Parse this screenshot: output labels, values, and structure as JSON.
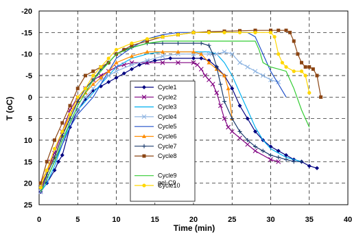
{
  "chart_data": {
    "type": "line",
    "title": "",
    "xlabel": "Time (min)",
    "ylabel": "T (oC)",
    "xlim": [
      0,
      40
    ],
    "ylim": [
      25,
      -20
    ],
    "y_axis_reversed": true,
    "grid": true,
    "grid_style": "dashed",
    "legend_position": "center",
    "x_ticks": [
      "0",
      "5",
      "10",
      "15",
      "20",
      "25",
      "30",
      "35",
      "40"
    ],
    "y_ticks": [
      "-20",
      "-15",
      "-10",
      "-5",
      "0",
      "5",
      "10",
      "15",
      "20",
      "25"
    ],
    "legend_extra_label": "gel-C9",
    "series": [
      {
        "name": "Cycle1",
        "color": "#000080",
        "marker": "diamond",
        "x": [
          0.2,
          1,
          2,
          2.5,
          3,
          4,
          5,
          6,
          7,
          8,
          9,
          10,
          11,
          12,
          13,
          14,
          15,
          17,
          20,
          21,
          22,
          23,
          24,
          25,
          26,
          27,
          28,
          29,
          30,
          31,
          32,
          33,
          34,
          35,
          36
        ],
        "y": [
          22,
          20,
          17,
          15,
          13.5,
          7,
          3,
          0.5,
          -1.5,
          -2.5,
          -3.5,
          -4.5,
          -5.5,
          -6.5,
          -7.5,
          -8,
          -8.5,
          -9,
          -9,
          -9,
          -8.5,
          -7,
          -5,
          -2,
          2,
          5,
          8,
          10,
          11.5,
          12.5,
          13.5,
          14.5,
          15,
          16,
          16.5
        ]
      },
      {
        "name": "Cycle2",
        "color": "#800080",
        "marker": "x",
        "x": [
          0.2,
          0.8,
          1.5,
          2,
          3,
          4,
          5,
          6,
          7,
          8,
          9,
          10,
          11,
          12,
          14,
          16,
          18,
          20,
          20.5,
          21,
          21.5,
          22,
          22.5,
          23,
          23.5,
          24,
          24.5,
          25,
          26,
          27,
          28,
          30,
          31
        ],
        "y": [
          22,
          19,
          15,
          13,
          8,
          3,
          0,
          -2,
          -4,
          -5,
          -6,
          -7,
          -7.5,
          -8,
          -8,
          -8,
          -8,
          -8,
          -7.5,
          -6.5,
          -5,
          -4,
          -3,
          -1,
          2,
          5,
          7,
          8,
          9.5,
          11,
          12.5,
          14.5,
          15
        ]
      },
      {
        "name": "Cycle3",
        "color": "#00b0f0",
        "marker": "none",
        "x": [
          0.2,
          1,
          2,
          3,
          4,
          5,
          6,
          7,
          8,
          9,
          10,
          12,
          14,
          16,
          18,
          20,
          22,
          23,
          24,
          25,
          26,
          27,
          28,
          29,
          30,
          31,
          32,
          33,
          34
        ],
        "y": [
          22,
          20,
          16,
          11,
          6,
          3,
          1,
          -1,
          -3,
          -5,
          -7,
          -9,
          -10,
          -10.5,
          -10.5,
          -10.5,
          -10.5,
          -10,
          -8,
          -5,
          -1,
          3,
          7,
          10,
          12,
          13,
          14,
          14.5,
          15
        ]
      },
      {
        "name": "Cycle4",
        "color": "#8db4e2",
        "marker": "x",
        "x": [
          0.2,
          1,
          2,
          3,
          4,
          5,
          6,
          7,
          8,
          9,
          10,
          12,
          14,
          16,
          18,
          20,
          21,
          22,
          23,
          24,
          25,
          26,
          27,
          28,
          29,
          30,
          31
        ],
        "y": [
          22,
          19,
          15,
          10,
          6,
          3,
          0,
          -2,
          -4,
          -5,
          -6,
          -7.5,
          -8.5,
          -9.5,
          -10,
          -10,
          -10,
          -10,
          -10,
          -10.5,
          -10,
          -8,
          -7,
          -6,
          -5,
          -4,
          -3.5
        ]
      },
      {
        "name": "Cycle5",
        "color": "#1f4fc8",
        "marker": "none",
        "x": [
          0.2,
          1,
          2,
          3,
          4,
          5,
          6,
          7,
          8,
          9,
          10,
          12,
          14,
          16,
          18,
          20,
          22,
          24,
          26,
          27,
          28,
          29,
          30,
          31,
          32
        ],
        "y": [
          22,
          19,
          15,
          11,
          7,
          4,
          2,
          0,
          -3,
          -6,
          -9,
          -11.5,
          -13.5,
          -14.5,
          -15,
          -15,
          -15,
          -15,
          -15,
          -15,
          -14,
          -10,
          -6,
          -3,
          0
        ]
      },
      {
        "name": "Cycle6",
        "color": "#ff8c00",
        "marker": "triangle",
        "x": [
          0.2,
          1,
          2,
          3,
          4,
          5,
          6,
          7,
          8,
          9,
          10,
          12,
          14,
          16,
          18,
          20,
          21,
          22,
          23,
          24,
          24.5,
          25
        ],
        "y": [
          20,
          17,
          14,
          9,
          4,
          1,
          -1,
          -3,
          -4.5,
          -6,
          -8,
          -9.5,
          -10.5,
          -10.5,
          -10.5,
          -10.5,
          -10,
          -8,
          -6.5,
          -5,
          -2,
          5
        ]
      },
      {
        "name": "Cycle7",
        "color": "#1a3a6b",
        "marker": "plus",
        "x": [
          0.2,
          1,
          2,
          3,
          4,
          5,
          6,
          7,
          8,
          9,
          10,
          11,
          12,
          14,
          16,
          18,
          20,
          21,
          22,
          22.5,
          23,
          23.5,
          24,
          25,
          26,
          27,
          28,
          29,
          30,
          31,
          32,
          33,
          34
        ],
        "y": [
          21,
          18,
          14,
          9,
          5,
          1,
          -2,
          -4,
          -6.5,
          -8,
          -10,
          -11,
          -11.5,
          -12.5,
          -12.5,
          -12.5,
          -12.5,
          -12.5,
          -12,
          -10,
          -7,
          -3,
          1,
          5,
          8,
          10,
          11.5,
          12.5,
          13.5,
          14,
          14.5,
          15,
          15
        ]
      },
      {
        "name": "Cycle8",
        "color": "#8b4513",
        "marker": "square",
        "x": [
          0.2,
          1,
          2,
          3,
          4,
          5,
          6,
          7,
          8,
          9,
          10,
          11,
          12,
          14,
          16,
          18,
          20,
          22,
          24,
          26,
          28,
          30,
          31,
          32,
          32.5,
          33,
          33.5,
          34,
          34.5,
          35,
          35.5,
          36,
          36.5
        ],
        "y": [
          20,
          15,
          10,
          6,
          2,
          -2,
          -5,
          -6,
          -7,
          -8,
          -10,
          -11,
          -12,
          -13,
          -14,
          -14.5,
          -15,
          -15.2,
          -15.3,
          -15.4,
          -15.5,
          -15.5,
          -15.5,
          -15.5,
          -15,
          -13,
          -10,
          -8,
          -7,
          -7,
          -6.5,
          -5,
          0
        ]
      },
      {
        "name": "Cycle9",
        "color": "#33cc33",
        "marker": "none",
        "x": [
          0.2,
          1,
          2,
          3,
          4,
          5,
          6,
          7,
          8,
          9,
          10,
          12,
          14,
          16,
          18,
          20,
          22,
          24,
          26,
          27,
          28,
          28.5,
          29,
          30,
          31,
          32,
          33,
          34,
          35
        ],
        "y": [
          22,
          19,
          15,
          10,
          6,
          2,
          -1,
          -4,
          -6,
          -8,
          -10,
          -11.5,
          -12.5,
          -13,
          -13,
          -13,
          -13,
          -13,
          -13,
          -13,
          -13,
          -11,
          -8,
          -7,
          -6.5,
          -6,
          -2,
          3,
          7
        ]
      },
      {
        "name": "Cycle10",
        "color": "#ffd700",
        "marker": "circle",
        "x": [
          0.2,
          1,
          2,
          3,
          4,
          5,
          6,
          7,
          8,
          9,
          10,
          12,
          14,
          16,
          18,
          20,
          22,
          24,
          26,
          28,
          30,
          30.5,
          31,
          31.5,
          32,
          33,
          34,
          34.5,
          35
        ],
        "y": [
          21,
          17,
          12,
          8,
          4,
          0,
          -2,
          -5,
          -7,
          -9,
          -11,
          -12.5,
          -13.5,
          -14,
          -14.5,
          -15,
          -15,
          -15,
          -15,
          -15,
          -15,
          -14,
          -10,
          -8,
          -7,
          -6,
          -6,
          -5,
          -1
        ]
      }
    ]
  }
}
